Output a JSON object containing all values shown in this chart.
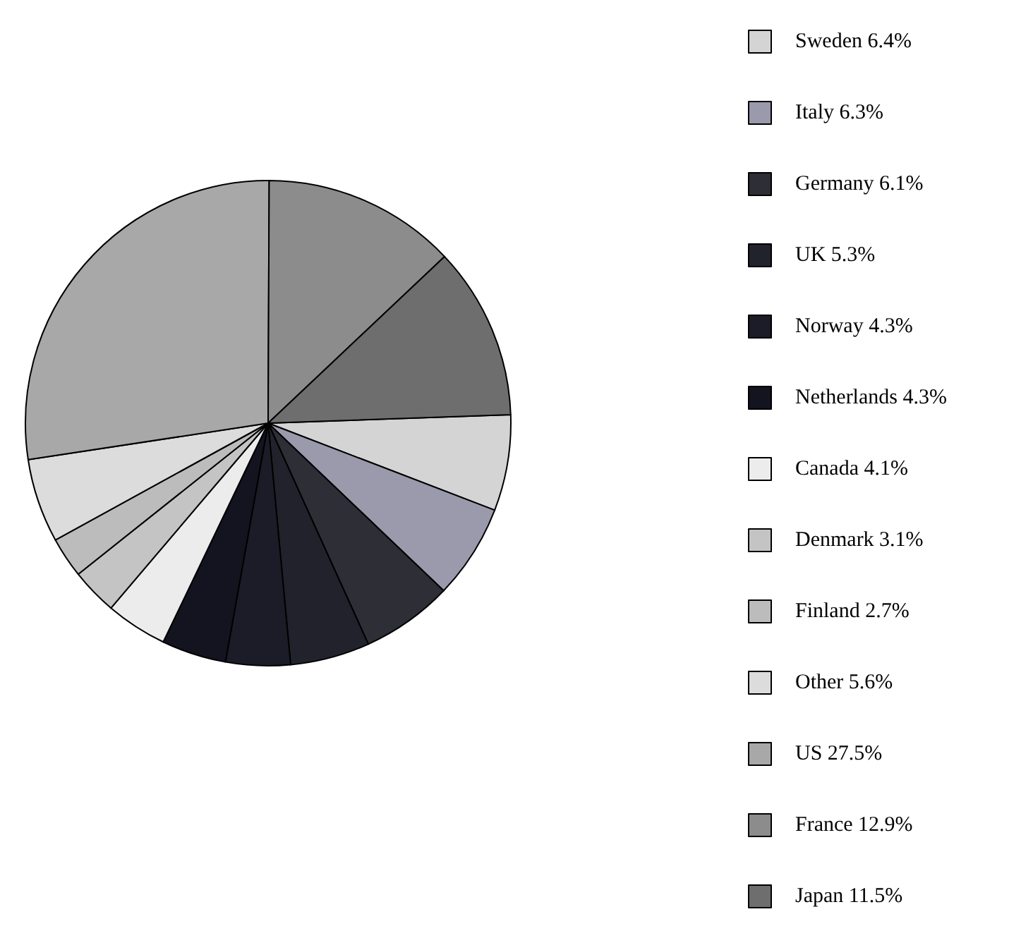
{
  "chart_data": {
    "type": "pie",
    "categories": [
      "Sweden",
      "Italy",
      "Germany",
      "UK",
      "Norway",
      "Netherlands",
      "Canada",
      "Denmark",
      "Finland",
      "Other",
      "US",
      "France",
      "Japan"
    ],
    "values": [
      6.4,
      6.3,
      6.1,
      5.3,
      4.3,
      4.3,
      4.1,
      3.1,
      2.7,
      5.6,
      27.5,
      12.9,
      11.5
    ],
    "value_labels": [
      "6.4%",
      "6.3%",
      "6.1%",
      "5.3%",
      "4.3%",
      "4.3%",
      "4.1%",
      "3.1%",
      "2.7%",
      "5.6%",
      "27.5%",
      "12.9%",
      "11.5%"
    ],
    "colors": [
      "#d4d4d4",
      "#9a9aac",
      "#2e2e36",
      "#22222c",
      "#1c1c28",
      "#141420",
      "#ececec",
      "#c4c4c4",
      "#bcbcbc",
      "#dcdcdc",
      "#a8a8a8",
      "#8c8c8c",
      "#6e6e6e"
    ],
    "legend": "right"
  }
}
